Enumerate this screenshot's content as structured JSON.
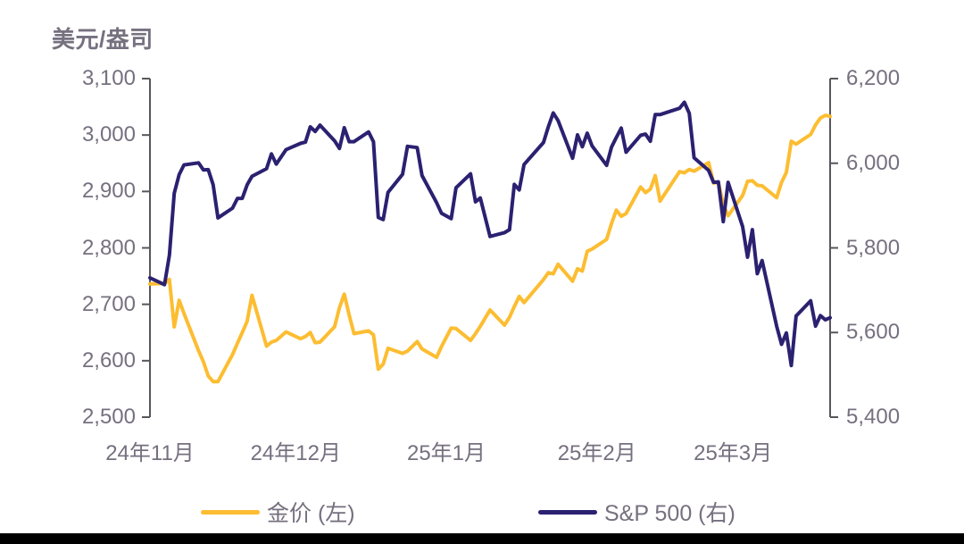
{
  "page": {
    "background_color": "#FFFFFF",
    "footer_bar_color": "#000000",
    "text_color": "#76707F",
    "axis_color": "#58565C"
  },
  "chart_data": {
    "type": "line",
    "left_axis_title": "美元/盎司",
    "x_domain_days": [
      0,
      140
    ],
    "x_tick_labels": [
      "24年11月",
      "24年12月",
      "25年1月",
      "25年2月",
      "25年3月"
    ],
    "x_tick_days": [
      0,
      30,
      61,
      92,
      120
    ],
    "left_axis": {
      "min": 2500,
      "max": 3100,
      "tick_values": [
        3100,
        3000,
        2900,
        2800,
        2700,
        2600,
        2500
      ],
      "tick_labels": [
        "3,100",
        "3,000",
        "2,900",
        "2,800",
        "2,700",
        "2,600",
        "2,500"
      ]
    },
    "right_axis": {
      "min": 5400,
      "max": 6200,
      "tick_values": [
        6200,
        6000,
        5800,
        5600,
        5400
      ],
      "tick_labels": [
        "6,200",
        "6,000",
        "5,800",
        "5,600",
        "5,400"
      ]
    },
    "grid": false,
    "legend_position": "bottom",
    "series": [
      {
        "name": "金价 (左)",
        "axis": "left",
        "color": "#FCBD31",
        "data_name": "gold-price-line",
        "days": [
          0,
          3,
          4,
          5,
          6,
          7,
          10,
          11,
          12,
          13,
          14,
          17,
          18,
          19,
          20,
          21,
          24,
          25,
          26,
          28,
          31,
          32,
          33,
          34,
          35,
          38,
          39,
          40,
          41,
          42,
          45,
          46,
          47,
          48,
          49,
          52,
          53,
          55,
          56,
          59,
          60,
          62,
          63,
          66,
          67,
          68,
          70,
          73,
          74,
          75,
          76,
          77,
          81,
          82,
          83,
          84,
          87,
          88,
          89,
          90,
          91,
          94,
          95,
          96,
          97,
          98,
          101,
          102,
          103,
          104,
          105,
          109,
          110,
          111,
          112,
          115,
          116,
          117,
          118,
          119,
          122,
          123,
          124,
          125,
          126,
          129,
          130,
          131,
          132,
          133,
          136,
          137,
          138,
          139,
          140
        ],
        "values": [
          2736,
          2737,
          2744,
          2660,
          2707,
          2684,
          2618,
          2598,
          2573,
          2563,
          2563,
          2611,
          2631,
          2650,
          2670,
          2716,
          2626,
          2633,
          2636,
          2651,
          2639,
          2643,
          2650,
          2632,
          2633,
          2660,
          2694,
          2718,
          2681,
          2648,
          2653,
          2646,
          2585,
          2594,
          2622,
          2613,
          2617,
          2634,
          2621,
          2606,
          2625,
          2658,
          2657,
          2636,
          2648,
          2661,
          2690,
          2663,
          2677,
          2696,
          2714,
          2703,
          2744,
          2756,
          2754,
          2771,
          2741,
          2763,
          2759,
          2794,
          2798,
          2815,
          2843,
          2867,
          2856,
          2861,
          2908,
          2898,
          2904,
          2928,
          2883,
          2935,
          2933,
          2939,
          2936,
          2951,
          2915,
          2916,
          2877,
          2857,
          2893,
          2918,
          2919,
          2911,
          2910,
          2889,
          2916,
          2934,
          2989,
          2984,
          3001,
          3018,
          3030,
          3035,
          3033
        ]
      },
      {
        "name": "S&P 500 (右)",
        "axis": "right",
        "color": "#2B2171",
        "data_name": "sp500-line",
        "days": [
          0,
          3,
          4,
          5,
          6,
          7,
          10,
          11,
          12,
          13,
          14,
          17,
          18,
          19,
          20,
          21,
          24,
          25,
          26,
          28,
          31,
          32,
          33,
          34,
          35,
          38,
          39,
          40,
          41,
          42,
          45,
          46,
          47,
          48,
          49,
          52,
          53,
          55,
          56,
          59,
          60,
          62,
          63,
          66,
          67,
          68,
          70,
          73,
          74,
          75,
          76,
          77,
          81,
          82,
          83,
          84,
          87,
          88,
          89,
          90,
          91,
          94,
          95,
          96,
          97,
          98,
          101,
          102,
          103,
          104,
          105,
          109,
          110,
          111,
          112,
          115,
          116,
          117,
          118,
          119,
          122,
          123,
          124,
          125,
          126,
          129,
          130,
          131,
          132,
          133,
          136,
          137,
          138,
          139,
          140
        ],
        "values": [
          5729,
          5713,
          5783,
          5929,
          5973,
          5996,
          6001,
          5984,
          5985,
          5949,
          5871,
          5894,
          5917,
          5917,
          5949,
          5969,
          5987,
          6022,
          5998,
          6032,
          6047,
          6050,
          6086,
          6075,
          6090,
          6053,
          6035,
          6084,
          6051,
          6051,
          6074,
          6051,
          5872,
          5867,
          5931,
          5974,
          6040,
          6037,
          5971,
          5907,
          5882,
          5869,
          5942,
          5975,
          5909,
          5918,
          5827,
          5836,
          5843,
          5950,
          5937,
          5997,
          6049,
          6086,
          6119,
          6101,
          6012,
          6067,
          6039,
          6071,
          6041,
          5995,
          6038,
          6061,
          6083,
          6026,
          6066,
          6069,
          6052,
          6115,
          6115,
          6130,
          6144,
          6118,
          6013,
          5983,
          5955,
          5956,
          5862,
          5955,
          5850,
          5778,
          5843,
          5739,
          5770,
          5615,
          5572,
          5599,
          5522,
          5639,
          5675,
          5615,
          5640,
          5630,
          5635
        ]
      }
    ],
    "legend": [
      {
        "label": "金价 (左)",
        "color": "#FCBD31"
      },
      {
        "label": "S&P 500 (右)",
        "color": "#2B2171"
      }
    ]
  }
}
